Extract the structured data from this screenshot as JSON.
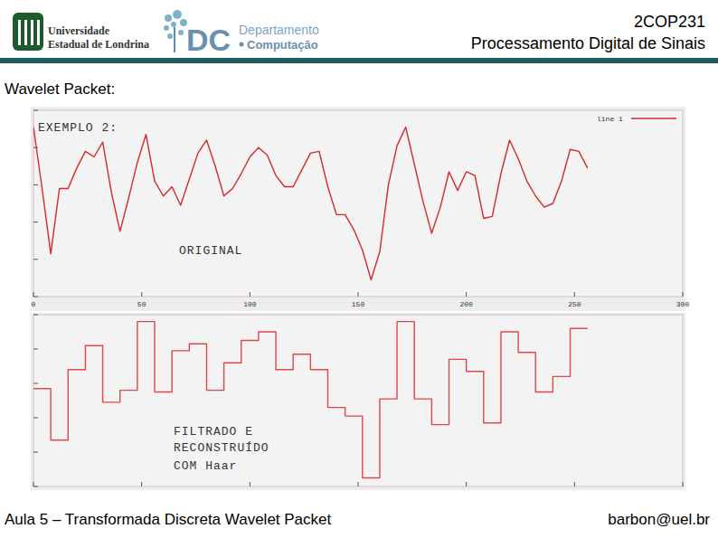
{
  "header": {
    "course_code": "2COP231",
    "course_name": "Processamento Digital de Sinais",
    "university": [
      "Universidade",
      "Estadual de Londrina"
    ],
    "department": {
      "acronym": "DC",
      "line1": "Departamento",
      "line2": "Computação"
    }
  },
  "section_title": "Wavelet Packet:",
  "chart_data": [
    {
      "type": "line",
      "annotations": [
        "EXEMPLO 2:",
        "ORIGINAL"
      ],
      "x": [
        0,
        4,
        8,
        12,
        16,
        20,
        24,
        28,
        32,
        36,
        40,
        44,
        48,
        52,
        56,
        60,
        64,
        68,
        72,
        76,
        80,
        84,
        88,
        92,
        96,
        100,
        104,
        108,
        112,
        116,
        120,
        124,
        128,
        132,
        136,
        140,
        144,
        148,
        152,
        156,
        160,
        164,
        168,
        172,
        176,
        180,
        184,
        188,
        192,
        196,
        200,
        204,
        208,
        212,
        216,
        220,
        224,
        228,
        232,
        236,
        240,
        244,
        248,
        252,
        256
      ],
      "series": [
        {
          "name": "line 1",
          "color": "#d42a2a",
          "values": [
            9.1,
            5.8,
            2.3,
            5.8,
            5.8,
            6.9,
            7.8,
            7.5,
            8.3,
            5.6,
            3.5,
            5.3,
            7.2,
            8.7,
            6.2,
            5.4,
            5.9,
            4.9,
            6.3,
            7.7,
            8.4,
            7.0,
            5.4,
            5.8,
            6.6,
            7.5,
            8.0,
            7.6,
            6.5,
            5.9,
            5.9,
            6.8,
            7.7,
            7.8,
            5.9,
            4.4,
            4.4,
            3.6,
            2.5,
            0.9,
            2.4,
            6.0,
            8.1,
            9.1,
            7.1,
            5.1,
            3.4,
            4.8,
            6.7,
            5.7,
            6.7,
            6.5,
            4.2,
            4.3,
            6.6,
            8.4,
            7.4,
            6.2,
            5.4,
            4.8,
            5.0,
            6.2,
            7.9,
            7.8,
            6.9
          ]
        }
      ],
      "xlim": [
        0,
        300
      ],
      "ylim": [
        0,
        10
      ],
      "xticks": [
        0,
        50,
        100,
        150,
        200,
        250,
        300
      ],
      "yticks": [
        0,
        2,
        4,
        6,
        8,
        10
      ],
      "tick_labels": "x",
      "legend": "top-right"
    },
    {
      "type": "line",
      "line_style": "steps",
      "annotations": [
        "FILTRADO E",
        "RECONSTRUÍDO",
        "COM Haar"
      ],
      "x": [
        0,
        8,
        16,
        24,
        32,
        40,
        48,
        56,
        64,
        72,
        80,
        88,
        96,
        104,
        112,
        120,
        128,
        136,
        144,
        152,
        160,
        168,
        176,
        184,
        192,
        200,
        208,
        216,
        224,
        232,
        240,
        248,
        256
      ],
      "series": [
        {
          "color": "#e04848",
          "values": [
            5.7,
            2.7,
            6.8,
            8.2,
            4.9,
            5.6,
            9.6,
            5.5,
            7.9,
            8.3,
            5.6,
            7.2,
            8.5,
            9.0,
            6.8,
            7.7,
            6.8,
            4.6,
            4.1,
            0.5,
            5.1,
            9.6,
            5.1,
            3.6,
            7.4,
            6.7,
            3.7,
            9.0,
            7.8,
            5.5,
            6.4,
            9.2,
            9.2
          ]
        }
      ],
      "xlim": [
        0,
        300
      ],
      "ylim": [
        0,
        10
      ],
      "xticks": [
        0,
        50,
        100,
        150,
        200,
        250,
        300
      ],
      "yticks": [
        0,
        2,
        4,
        6,
        8,
        10
      ],
      "tick_labels": false
    }
  ],
  "footer": {
    "lecture": "Aula 5 – Transformada Discreta Wavelet Packet",
    "email": "barbon@uel.br"
  }
}
